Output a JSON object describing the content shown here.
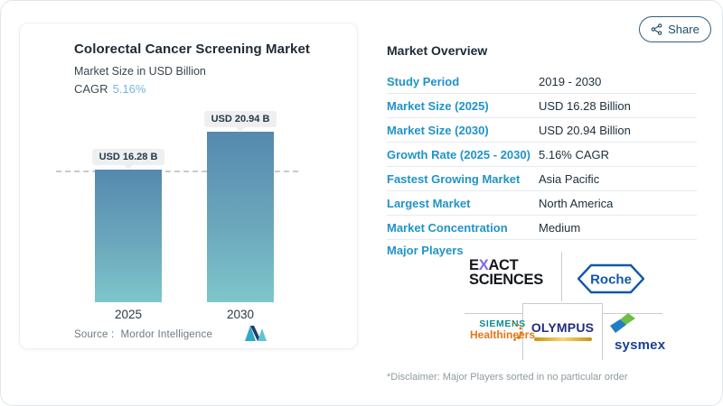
{
  "share": {
    "label": "Share"
  },
  "chart_card": {
    "title": "Colorectal Cancer Screening Market",
    "subtitle": "Market Size in USD Billion",
    "cagr_label": "CAGR",
    "cagr_value": "5.16%",
    "source_label": "Source :",
    "source_value": "Mordor Intelligence"
  },
  "chart_data": {
    "type": "bar",
    "title": "Colorectal Cancer Screening Market",
    "ylabel": "Market Size in USD Billion",
    "categories": [
      "2025",
      "2030"
    ],
    "values": [
      16.28,
      20.94
    ],
    "value_labels": [
      "USD 16.28 B",
      "USD 20.94 B"
    ],
    "units": "USD Billion",
    "cagr_percent": 5.16,
    "reference_line": {
      "value": 16.28,
      "style": "dashed"
    },
    "axes_hidden": true,
    "grid": false,
    "bar_gradient_top": "#5589af",
    "bar_gradient_bottom": "#7ec6cb"
  },
  "overview": {
    "heading": "Market Overview",
    "rows": [
      {
        "label": "Study Period",
        "value": "2019 - 2030"
      },
      {
        "label": "Market Size (2025)",
        "value": "USD 16.28 Billion"
      },
      {
        "label": "Market Size (2030)",
        "value": "USD 20.94 Billion"
      },
      {
        "label": "Growth Rate (2025 - 2030)",
        "value": "5.16% CAGR"
      },
      {
        "label": "Fastest Growing Market",
        "value": "Asia Pacific"
      },
      {
        "label": "Largest Market",
        "value": "North America"
      },
      {
        "label": "Market Concentration",
        "value": "Medium"
      }
    ],
    "major_players_label": "Major Players",
    "disclaimer": "*Disclaimer: Major Players sorted in no particular order"
  },
  "players": {
    "exact": {
      "t1": "E",
      "t2": "X",
      "t3": "ACT",
      "line2": "SCIENCES"
    },
    "roche": {
      "text": "Roche"
    },
    "siemens": {
      "line1": "SIEMENS",
      "line2": "Healthineers"
    },
    "olympus": {
      "text": "OLYMPUS"
    },
    "sysmex": {
      "text": "sysmex"
    }
  },
  "colors": {
    "accent_blue": "#2093c9",
    "cagr_blue": "#74b8de",
    "share_navy": "#1d4e66",
    "bar_top": "#5589af",
    "bar_bottom": "#7ec6cb"
  }
}
